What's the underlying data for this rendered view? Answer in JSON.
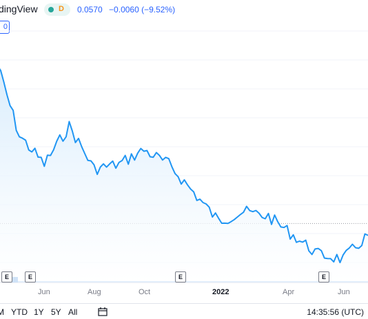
{
  "header": {
    "brand_text": "dingView",
    "pill_letter": "D",
    "last_price": "0.0570",
    "change": "−0.0060 (−9.52%)",
    "scale_label": "0"
  },
  "colors": {
    "line": "#2196f3",
    "area_top": "#d6ebfc",
    "area_bottom": "#ffffff",
    "accent": "#2962ff",
    "green_dot": "#26a69a",
    "pill_letter": "#f7931a"
  },
  "events": [
    "E",
    "E",
    "E",
    "E"
  ],
  "x_axis": {
    "ticks": [
      "Jun",
      "Aug",
      "Oct",
      "2022",
      "Apr",
      "Jun"
    ]
  },
  "bottom_bar": {
    "ranges": [
      "M",
      "YTD",
      "1Y",
      "5Y",
      "All"
    ],
    "calendar_icon": "calendar-icon",
    "clock": "14:35:56 (UTC)"
  },
  "chart_data": {
    "type": "area",
    "x": [
      "Apr 2021",
      "May 2021",
      "Jun 2021",
      "Jul 2021",
      "Aug 2021",
      "Sep 2021",
      "Oct 2021",
      "Nov 2021",
      "Dec 2021",
      "Jan 2022",
      "Feb 2022",
      "Mar 2022",
      "Apr 2022",
      "May 2022",
      "Jun 2022",
      "Jul 2022"
    ],
    "series": [
      {
        "values": [
          0.095,
          0.078,
          0.072,
          0.08,
          0.071,
          0.072,
          0.075,
          0.072,
          0.066,
          0.06,
          0.062,
          0.061,
          0.057,
          0.053,
          0.052,
          0.057
        ]
      }
    ],
    "price_line_value": 0.0595
  }
}
